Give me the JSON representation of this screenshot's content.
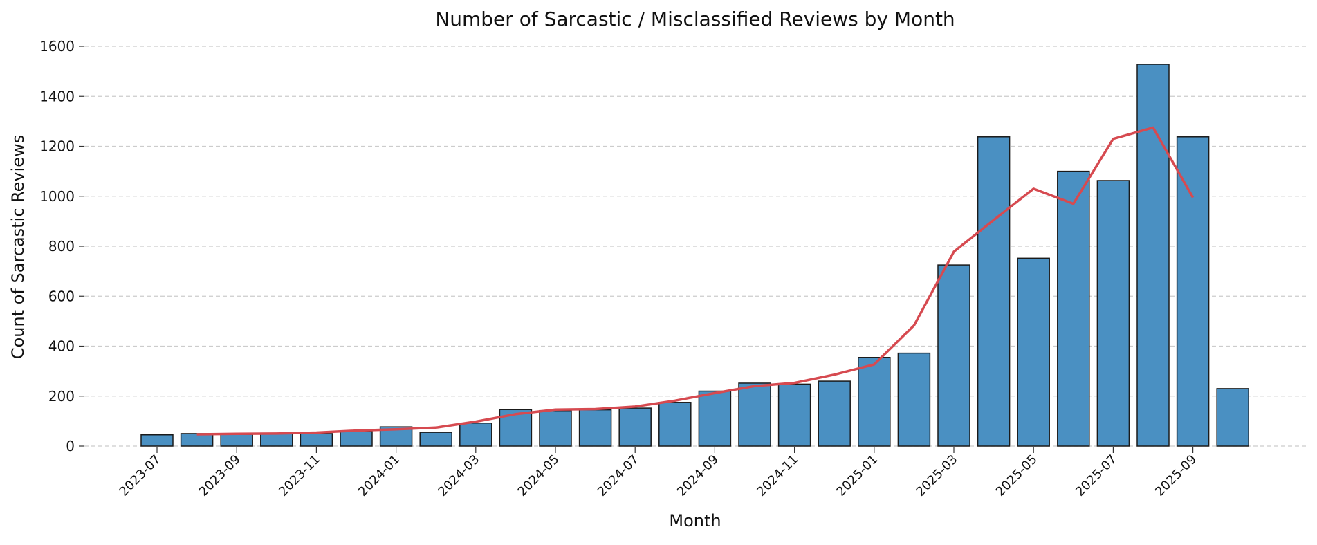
{
  "chart_data": {
    "type": "bar",
    "title": "Number of Sarcastic / Misclassified Reviews by Month",
    "xlabel": "Month",
    "ylabel": "Count of Sarcastic Reviews",
    "ylim": [
      0,
      1600
    ],
    "yticks": [
      0,
      200,
      400,
      600,
      800,
      1000,
      1200,
      1400,
      1600
    ],
    "grid": "horizontal dashed",
    "categories": [
      "2023-07",
      "2023-08",
      "2023-09",
      "2023-10",
      "2023-11",
      "2023-12",
      "2024-01",
      "2024-02",
      "2024-03",
      "2024-04",
      "2024-05",
      "2024-06",
      "2024-07",
      "2024-08",
      "2024-09",
      "2024-10",
      "2024-11",
      "2024-12",
      "2025-01",
      "2025-02",
      "2025-03",
      "2025-04",
      "2025-05",
      "2025-06",
      "2025-07",
      "2025-08",
      "2025-09",
      "2025-10"
    ],
    "xtick_labels": [
      "2023-07",
      "2023-09",
      "2023-11",
      "2024-01",
      "2024-03",
      "2024-05",
      "2024-07",
      "2024-09",
      "2024-11",
      "2025-01",
      "2025-03",
      "2025-05",
      "2025-07",
      "2025-09"
    ],
    "series": [
      {
        "type": "bar",
        "values": [
          45,
          50,
          47,
          52,
          50,
          60,
          77,
          55,
          92,
          146,
          142,
          145,
          152,
          175,
          220,
          252,
          248,
          260,
          355,
          372,
          725,
          1238,
          752,
          1100,
          1063,
          1528,
          1238,
          230
        ]
      },
      {
        "type": "line",
        "values": [
          null,
          47,
          49,
          50,
          54,
          62,
          67,
          74,
          98,
          128,
          146,
          148,
          158,
          182,
          212,
          240,
          253,
          286,
          327,
          483,
          778,
          905,
          1030,
          970,
          1230,
          1275,
          995,
          null
        ]
      }
    ],
    "colors": {
      "bar": "#4a90c2",
      "bar_edge": "#1a1a1a",
      "line": "#d64a50",
      "grid": "#cccccc"
    }
  }
}
